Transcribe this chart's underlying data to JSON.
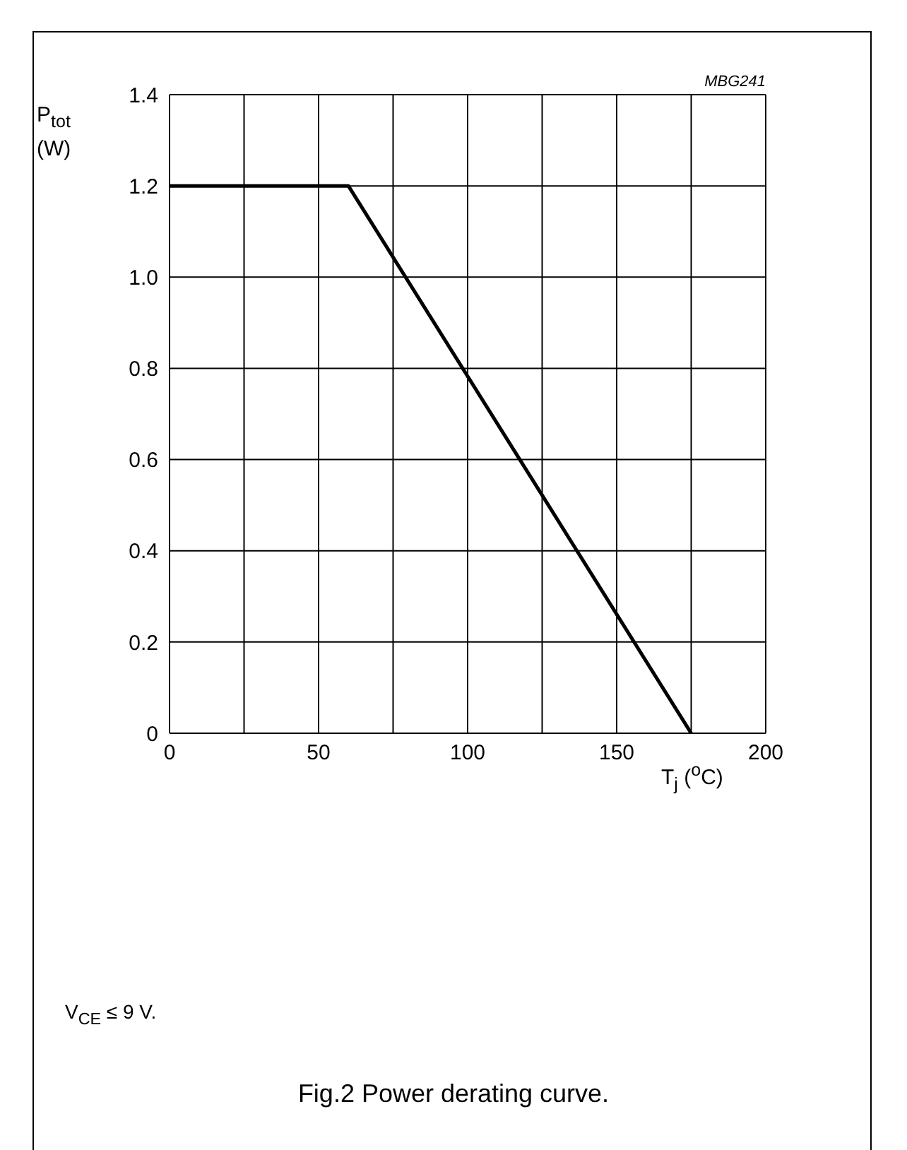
{
  "chart_data": {
    "type": "line",
    "title": "Fig.2  Power derating curve.",
    "xlabel": "T$_{j}$ ($^{o}$C)",
    "ylabel": "P$_{tot}$ (W)",
    "annotations": [
      "MBG241",
      "V$_{CE}$ ≤ 9 V."
    ],
    "series": [
      {
        "color": "#000000",
        "x": [
          0,
          60,
          175
        ],
        "values": [
          1.2,
          1.2,
          0
        ]
      }
    ],
    "xlim": [
      0,
      200
    ],
    "xticks": [
      0,
      {
        "value": 25,
        "label": null
      },
      50,
      {
        "value": 75,
        "label": null
      },
      100,
      {
        "value": 125,
        "label": null
      },
      150,
      {
        "value": 175,
        "label": null
      },
      200
    ],
    "ylim": [
      0,
      1.4
    ],
    "yticks": [
      0,
      0.2,
      0.4,
      0.6,
      0.8,
      {
        "value": 1,
        "label": "1.0"
      },
      1.2,
      1.4
    ],
    "grid": true
  }
}
